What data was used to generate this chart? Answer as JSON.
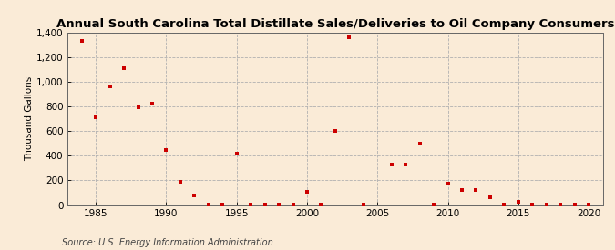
{
  "title": "Annual South Carolina Total Distillate Sales/Deliveries to Oil Company Consumers",
  "ylabel": "Thousand Gallons",
  "source": "Source: U.S. Energy Information Administration",
  "background_color": "#faebd7",
  "plot_background_color": "#faebd7",
  "marker_color": "#cc0000",
  "marker": "s",
  "marker_size": 3.5,
  "xlim": [
    1983,
    2021
  ],
  "ylim": [
    0,
    1400
  ],
  "yticks": [
    0,
    200,
    400,
    600,
    800,
    1000,
    1200,
    1400
  ],
  "ytick_labels": [
    "0",
    "200",
    "400",
    "600",
    "800",
    "1,000",
    "1,200",
    "1,400"
  ],
  "xticks": [
    1985,
    1990,
    1995,
    2000,
    2005,
    2010,
    2015,
    2020
  ],
  "data": {
    "years": [
      1984,
      1985,
      1986,
      1987,
      1988,
      1989,
      1990,
      1991,
      1992,
      1993,
      1994,
      1995,
      1996,
      1997,
      1998,
      1999,
      2000,
      2001,
      2002,
      2003,
      2004,
      2006,
      2007,
      2008,
      2009,
      2010,
      2011,
      2012,
      2013,
      2014,
      2015,
      2016,
      2017,
      2018,
      2019,
      2020
    ],
    "values": [
      1330,
      715,
      960,
      1110,
      790,
      825,
      450,
      190,
      75,
      5,
      5,
      415,
      5,
      5,
      5,
      5,
      110,
      5,
      600,
      1360,
      5,
      330,
      325,
      500,
      5,
      175,
      120,
      120,
      65,
      5,
      25,
      5,
      5,
      5,
      5,
      5
    ]
  },
  "title_fontsize": 9.5,
  "tick_fontsize": 7.5,
  "ylabel_fontsize": 7.5,
  "source_fontsize": 7.0
}
